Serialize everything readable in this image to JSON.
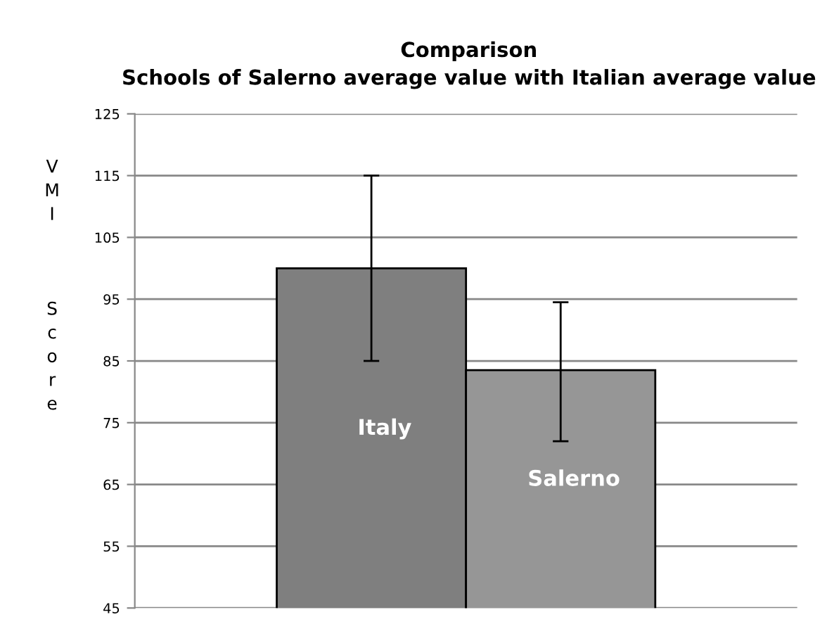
{
  "chart_data": {
    "type": "bar",
    "title": "Comparison\nSchools of Salerno average value with Italian average value",
    "ylabel": "VMI Score",
    "categories": [
      "Italy",
      "Salerno"
    ],
    "values": [
      100,
      83.5
    ],
    "colors": [
      "#7f7f7f",
      "#969696"
    ],
    "errors": [
      [
        85,
        115
      ],
      [
        72,
        94.5
      ]
    ],
    "ylim": [
      45,
      125
    ],
    "yticks": [
      45,
      55,
      65,
      75,
      85,
      95,
      105,
      115,
      125
    ],
    "grid": "y",
    "tick_labels": "y"
  }
}
